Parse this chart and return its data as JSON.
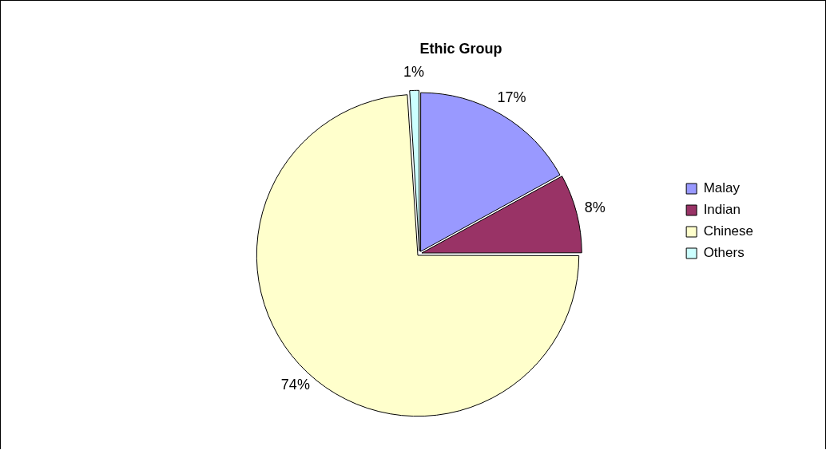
{
  "chart_data": {
    "type": "pie",
    "title": "Ethic Group",
    "categories": [
      "Malay",
      "Indian",
      "Chinese",
      "Others"
    ],
    "values": [
      17,
      8,
      74,
      1
    ],
    "colors": [
      "#9999ff",
      "#993366",
      "#ffffcc",
      "#ccffff"
    ],
    "value_labels": [
      "17%",
      "8%",
      "74%",
      "1%"
    ],
    "legend": "right"
  }
}
